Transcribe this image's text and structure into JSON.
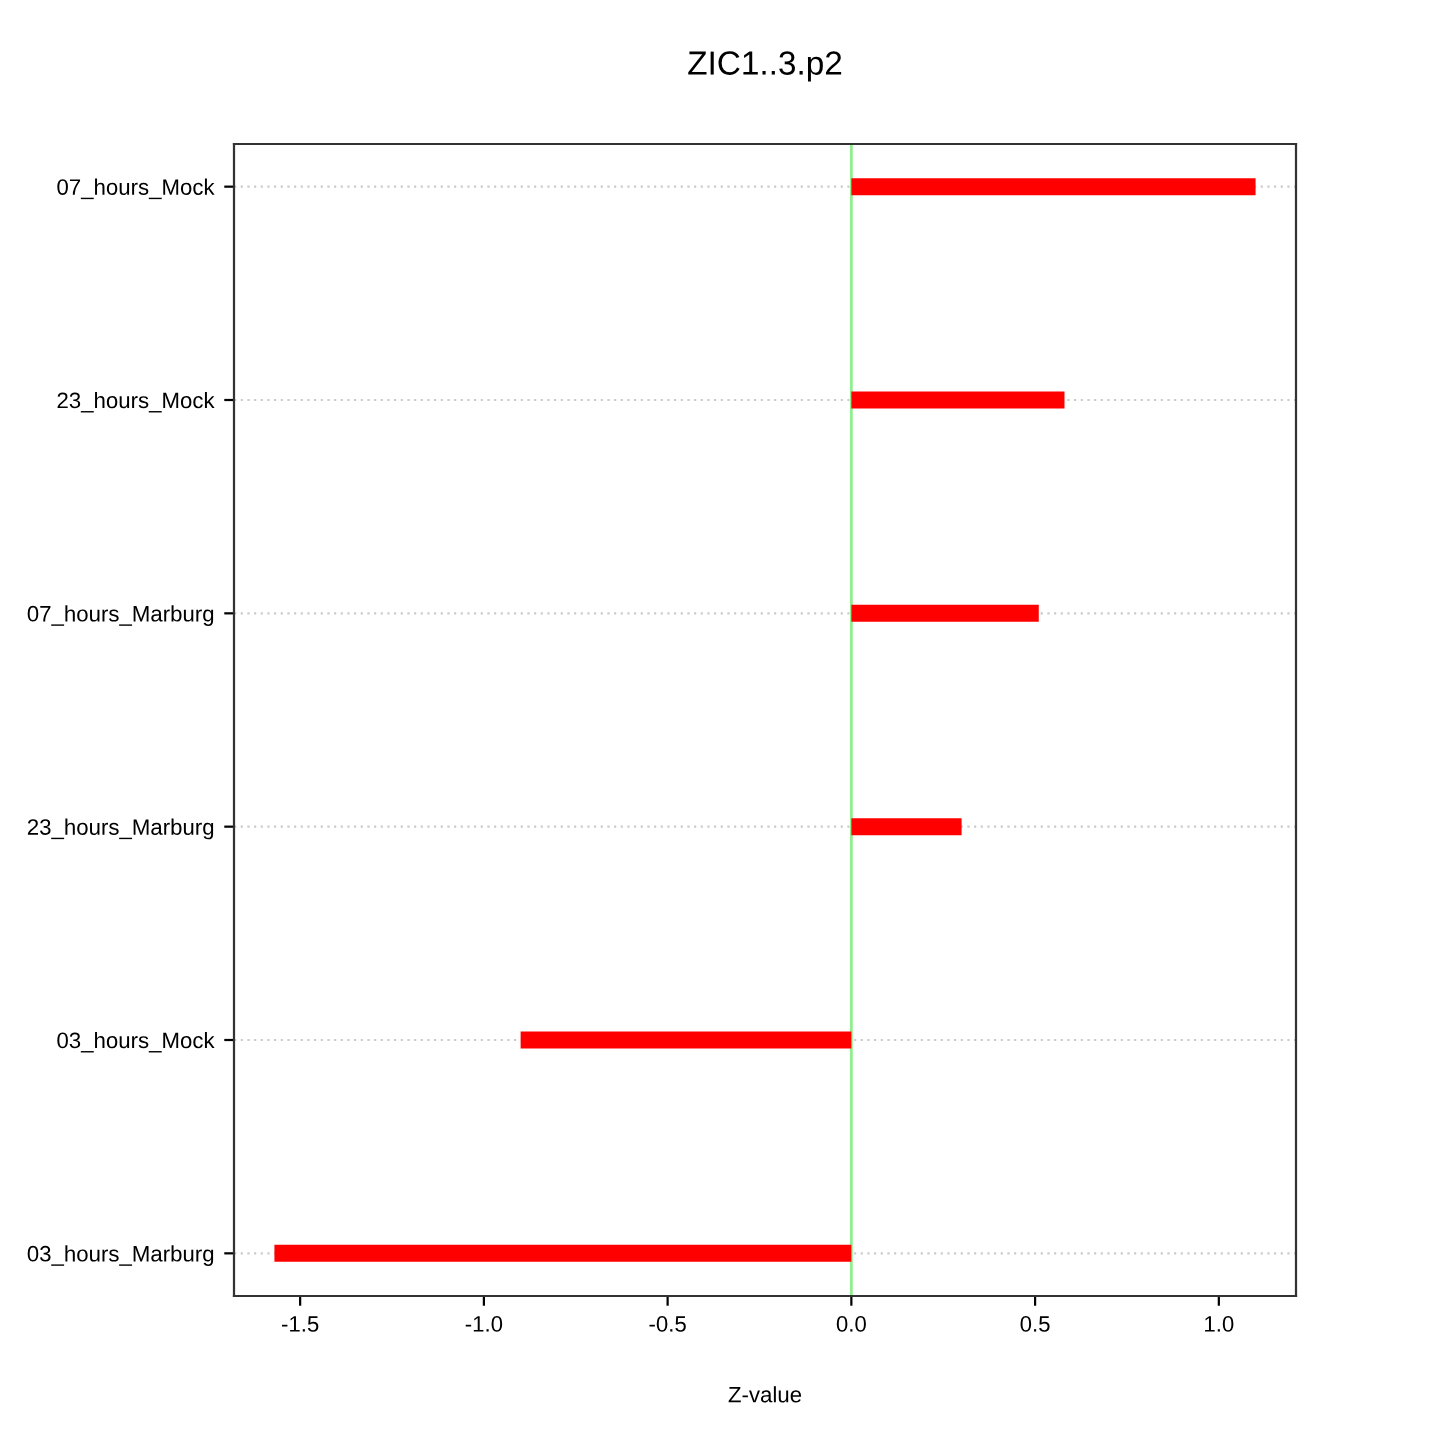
{
  "chart_data": {
    "type": "bar",
    "orientation": "horizontal",
    "title": "ZIC1..3.p2",
    "xlabel": "Z-value",
    "categories": [
      "07_hours_Mock",
      "23_hours_Mock",
      "07_hours_Marburg",
      "23_hours_Marburg",
      "03_hours_Mock",
      "03_hours_Marburg"
    ],
    "values": [
      1.1,
      0.58,
      0.51,
      0.3,
      -0.9,
      -1.57
    ],
    "color": "#ff0000",
    "xlim": [
      -1.68,
      1.21
    ],
    "xticks": [
      {
        "value": -1.5,
        "label": "-1.5"
      },
      {
        "value": -1.0,
        "label": "-1.0"
      },
      {
        "value": -0.5,
        "label": "-0.5"
      },
      {
        "value": 0,
        "label": "0.0"
      },
      {
        "value": 0.5,
        "label": "0.5"
      },
      {
        "value": 1.0,
        "label": "1.0"
      }
    ],
    "ref_lines": [
      {
        "axis": "x",
        "value": 0,
        "color": "#90ee90"
      }
    ],
    "grid": "y"
  }
}
